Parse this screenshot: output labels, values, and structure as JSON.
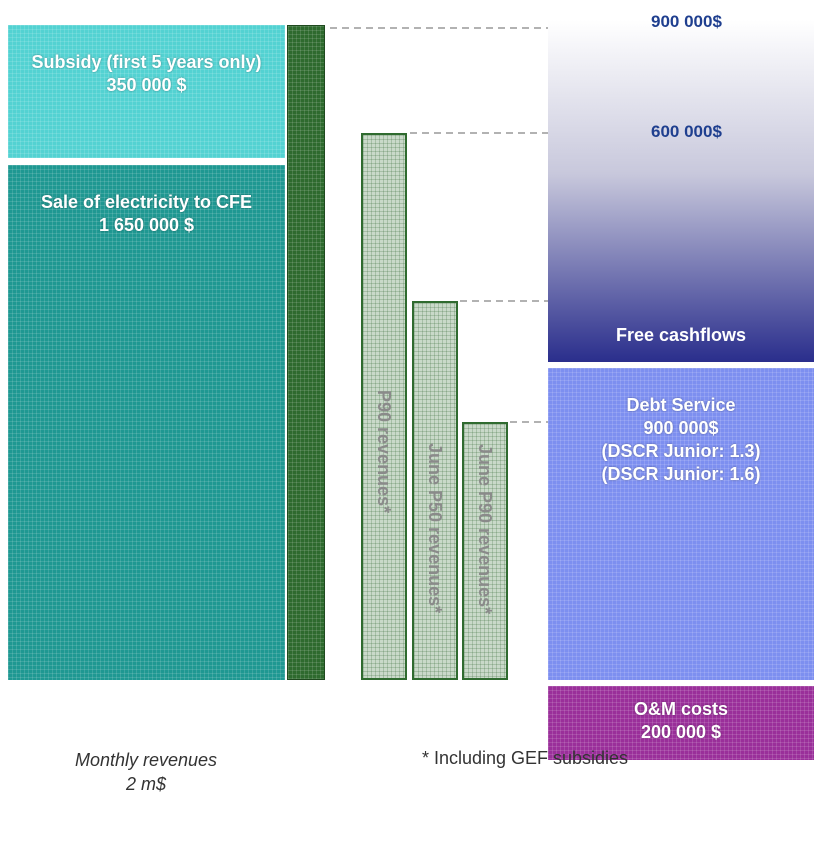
{
  "revenues": {
    "subsidy": {
      "label": "Subsidy (first 5 years only)",
      "amount": "350 000 $"
    },
    "sale": {
      "label": "Sale of electricity to CFE",
      "amount": "1 650 000 $"
    },
    "caption": {
      "title": "Monthly revenues",
      "amount": "2 m$"
    }
  },
  "scenarios": [
    {
      "label": "P90 revenues*"
    },
    {
      "label": "June P50 revenues*"
    },
    {
      "label": "June P90 revenues*"
    }
  ],
  "scenario_note": "* Including GEF subsidies",
  "levels": [
    "900 000$",
    "600 000$"
  ],
  "uses": {
    "free_cashflows": "Free cashflows",
    "debt_service": {
      "title": "Debt Service",
      "amount": "900 000$",
      "ratios": [
        "(DSCR Junior: 1.3)",
        "(DSCR Junior: 1.6)"
      ]
    },
    "om": {
      "title": "O&M costs",
      "amount": "200 000 $"
    }
  }
}
